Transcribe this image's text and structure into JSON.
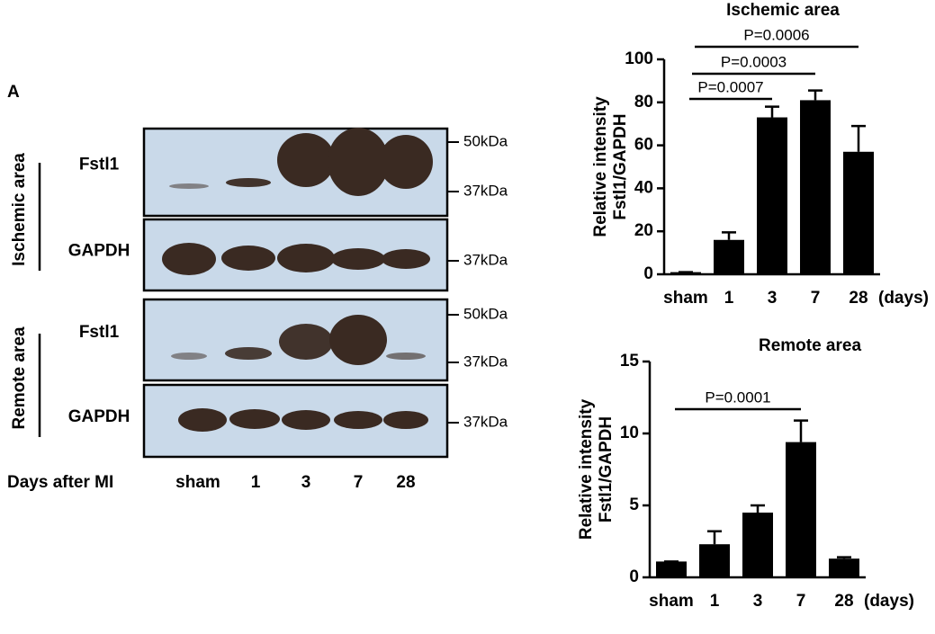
{
  "panel_label": "A",
  "blot": {
    "groups": [
      {
        "name": "Ischemic area",
        "rows": [
          {
            "protein": "Fstl1",
            "markers": [
              "50kDa",
              "37kDa"
            ]
          },
          {
            "protein": "GAPDH",
            "markers": [
              "37kDa"
            ]
          }
        ]
      },
      {
        "name": "Remote area",
        "rows": [
          {
            "protein": "Fstl1",
            "markers": [
              "50kDa",
              "37kDa"
            ]
          },
          {
            "protein": "GAPDH",
            "markers": [
              "37kDa"
            ]
          }
        ]
      }
    ],
    "x_title": "Days after MI",
    "lanes": [
      "sham",
      "1",
      "3",
      "7",
      "28"
    ]
  },
  "chart_data": [
    {
      "type": "bar",
      "title": "Ischemic area",
      "ylabel": [
        "Relative intensity",
        "Fstl1/GAPDH"
      ],
      "categories": [
        "sham",
        "1",
        "3",
        "7",
        "28"
      ],
      "x_suffix": "(days)",
      "values": [
        1,
        16,
        73,
        81,
        57
      ],
      "errors": [
        0,
        3.5,
        5,
        4.5,
        12
      ],
      "color": "#000000",
      "ylim": [
        0,
        100
      ],
      "yticks": [
        0,
        20,
        40,
        60,
        80,
        100
      ],
      "annotations": [
        {
          "text": "P=0.0007",
          "from": 0,
          "to": 2
        },
        {
          "text": "P=0.0003",
          "from": 0,
          "to": 3
        },
        {
          "text": "P=0.0006",
          "from": 0,
          "to": 4
        }
      ]
    },
    {
      "type": "bar",
      "title": "Remote area",
      "ylabel": [
        "Relative intensity",
        "Fstl1/GAPDH"
      ],
      "categories": [
        "sham",
        "1",
        "3",
        "7",
        "28"
      ],
      "x_suffix": "(days)",
      "values": [
        1.1,
        2.3,
        4.5,
        9.4,
        1.3
      ],
      "errors": [
        0,
        0.9,
        0.5,
        1.5,
        0.1
      ],
      "color": "#000000",
      "ylim": [
        0,
        15
      ],
      "yticks": [
        0,
        5,
        10,
        15
      ],
      "annotations": [
        {
          "text": "P=0.0001",
          "from": 0,
          "to": 3
        }
      ]
    }
  ]
}
